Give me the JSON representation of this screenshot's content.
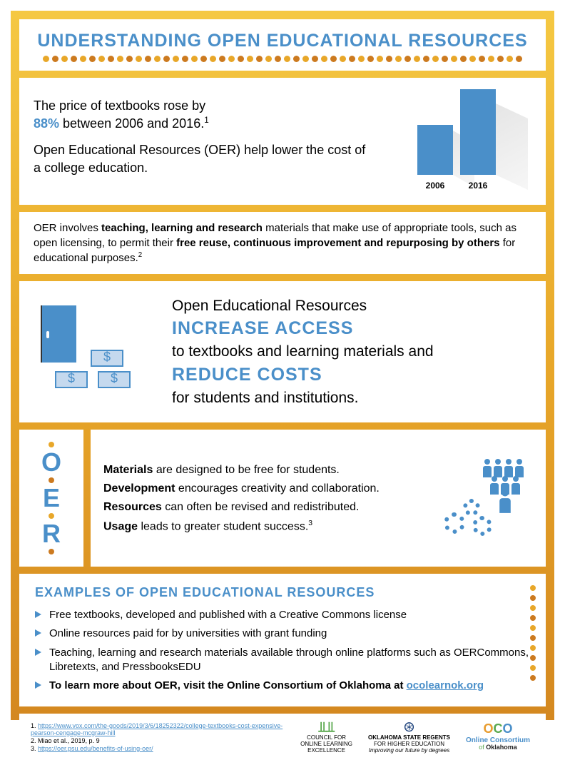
{
  "colors": {
    "primary": "#4a8fc9",
    "accent": "#e8a729",
    "accent2": "#cc7a1f",
    "text": "#222222"
  },
  "title": "UNDERSTANDING OPEN EDUCATIONAL RESOURCES",
  "intro": {
    "line1_a": "The price of textbooks rose by",
    "pct": "88%",
    "line1_b": " between 2006 and 2016.",
    "sup1": "1",
    "line2": "Open Educational Resources (OER) help lower the cost of a college education.",
    "chart": {
      "labels": [
        "2006",
        "2016"
      ],
      "heights": [
        70,
        120
      ]
    }
  },
  "definition": {
    "a": "OER involves ",
    "b": "teaching, learning and research",
    "c": " materials that make use of appropriate tools, such as open licensing, to permit their ",
    "d": "free reuse, continuous improvement and repurposing by others",
    "e": " for educational purposes.",
    "sup": "2"
  },
  "benefit": {
    "a": "Open Educational Resources",
    "b": "INCREASE ACCESS",
    "c": "to textbooks and learning materials and",
    "d": "REDUCE COSTS",
    "e": "for students and institutions."
  },
  "oer_letters": [
    "O",
    "E",
    "R"
  ],
  "oer_items": [
    {
      "b": "Materials",
      "t": " are designed to be free for students."
    },
    {
      "b": "Development",
      "t": " encourages creativity and collaboration."
    },
    {
      "b": "Resources",
      "t": " can often be revised and redistributed."
    },
    {
      "b": "Usage",
      "t": " leads to greater student success.",
      "sup": "3"
    }
  ],
  "examples": {
    "title": "EXAMPLES OF OPEN EDUCATIONAL RESOURCES",
    "items": [
      "Free textbooks, developed and published with a Creative Commons license",
      "Online resources paid for by universities with grant funding",
      "Teaching, learning and research materials available through online platforms such as OERCommons, Libretexts, and PressbooksEDU"
    ],
    "cta_a": "To learn more about OER, visit the Online Consortium of Oklahoma at ",
    "cta_link": "ocolearnok.org"
  },
  "refs": [
    {
      "n": "1.",
      "t": "https://www.vox.com/the-goods/2019/3/6/18252322/college-textbooks-cost-expensive-pearson-cengage-mcgraw-hill",
      "link": true
    },
    {
      "n": "2.",
      "t": "Miao et al., 2019, p. 9",
      "link": false
    },
    {
      "n": "3.",
      "t": "https://oer.psu.edu/benefits-of-using-oer/",
      "link": true
    }
  ],
  "logos": {
    "cole": "COUNCIL FOR\nONLINE LEARNING\nEXCELLENCE",
    "osrhe_a": "OKLAHOMA STATE REGENTS",
    "osrhe_b": "FOR HIGHER EDUCATION",
    "osrhe_c": "Improving our future by degrees",
    "oco_a": "Online Consortium",
    "oco_b": "of Oklahoma"
  }
}
